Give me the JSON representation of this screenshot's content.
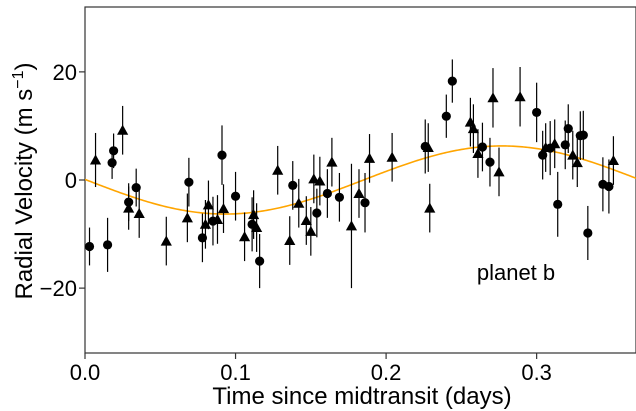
{
  "chart_data": {
    "type": "scatter",
    "title": "",
    "xlabel": "Time since midtransit (days)",
    "ylabel_main": "Radial Velocity (m s",
    "ylabel_sup": "−1",
    "ylabel_close": ")",
    "annotation": "planet b",
    "xlim": [
      0.0,
      0.366
    ],
    "ylim": [
      -32,
      32
    ],
    "x_ticks": [
      0.0,
      0.1,
      0.2,
      0.3
    ],
    "x_tick_labels": [
      "0.0",
      "0.1",
      "0.2",
      "0.3"
    ],
    "y_ticks": [
      -20,
      0,
      20
    ],
    "y_tick_labels": [
      "−20",
      "0",
      "20"
    ],
    "grid": false,
    "legend": false,
    "model_curve": {
      "color": "#FFA500",
      "function": "sinusoid",
      "amplitude": 6.3,
      "phase_of_maximum": 0.277,
      "period": 0.368
    },
    "series": [
      {
        "marker": "circle",
        "color": "#000000",
        "points": [
          {
            "x": 0.003,
            "y": -12.3,
            "err": 3.5
          },
          {
            "x": 0.015,
            "y": -12.0,
            "err": 5.0
          },
          {
            "x": 0.018,
            "y": 3.2,
            "err": 3.0
          },
          {
            "x": 0.019,
            "y": 5.4,
            "err": 3.2
          },
          {
            "x": 0.029,
            "y": -4.1,
            "err": 3.5
          },
          {
            "x": 0.034,
            "y": -1.4,
            "err": 3.5
          },
          {
            "x": 0.069,
            "y": -0.4,
            "err": 4.5
          },
          {
            "x": 0.078,
            "y": -10.7,
            "err": 4.5
          },
          {
            "x": 0.085,
            "y": -7.6,
            "err": 4.5
          },
          {
            "x": 0.091,
            "y": 4.6,
            "err": 5.5
          },
          {
            "x": 0.1,
            "y": -3.0,
            "err": 4.5
          },
          {
            "x": 0.111,
            "y": -8.2,
            "err": 5.0
          },
          {
            "x": 0.116,
            "y": -15.0,
            "err": 5.0
          },
          {
            "x": 0.138,
            "y": -1.0,
            "err": 4.5
          },
          {
            "x": 0.154,
            "y": -6.1,
            "err": 4.5
          },
          {
            "x": 0.161,
            "y": -2.5,
            "err": 4.5
          },
          {
            "x": 0.169,
            "y": -3.2,
            "err": 4.5
          },
          {
            "x": 0.186,
            "y": -4.2,
            "err": 5.5
          },
          {
            "x": 0.226,
            "y": 6.2,
            "err": 5.0
          },
          {
            "x": 0.24,
            "y": 11.8,
            "err": 4.0
          },
          {
            "x": 0.244,
            "y": 18.3,
            "err": 4.0
          },
          {
            "x": 0.264,
            "y": 6.1,
            "err": 4.5
          },
          {
            "x": 0.269,
            "y": 3.3,
            "err": 4.5
          },
          {
            "x": 0.3,
            "y": 12.5,
            "err": 5.5
          },
          {
            "x": 0.304,
            "y": 4.6,
            "err": 4.5
          },
          {
            "x": 0.309,
            "y": 5.9,
            "err": 5.0
          },
          {
            "x": 0.314,
            "y": -4.5,
            "err": 6.0
          },
          {
            "x": 0.319,
            "y": 6.5,
            "err": 4.5
          },
          {
            "x": 0.321,
            "y": 9.5,
            "err": 4.5
          },
          {
            "x": 0.329,
            "y": 8.2,
            "err": 4.5
          },
          {
            "x": 0.331,
            "y": 8.3,
            "err": 4.5
          },
          {
            "x": 0.334,
            "y": -9.8,
            "err": 5.0
          },
          {
            "x": 0.344,
            "y": -0.8,
            "err": 5.0
          },
          {
            "x": 0.348,
            "y": -1.2,
            "err": 5.0
          }
        ]
      },
      {
        "marker": "triangle",
        "color": "#000000",
        "points": [
          {
            "x": 0.007,
            "y": 3.7,
            "err": 5.0
          },
          {
            "x": 0.025,
            "y": 9.2,
            "err": 4.5
          },
          {
            "x": 0.029,
            "y": -5.2,
            "err": 4.0
          },
          {
            "x": 0.036,
            "y": -6.2,
            "err": 4.5
          },
          {
            "x": 0.054,
            "y": -11.3,
            "err": 4.5
          },
          {
            "x": 0.068,
            "y": -7.0,
            "err": 4.5
          },
          {
            "x": 0.08,
            "y": -8.2,
            "err": 4.5
          },
          {
            "x": 0.082,
            "y": -4.6,
            "err": 4.5
          },
          {
            "x": 0.088,
            "y": -7.3,
            "err": 4.5
          },
          {
            "x": 0.092,
            "y": -5.3,
            "err": 4.5
          },
          {
            "x": 0.106,
            "y": -10.5,
            "err": 4.5
          },
          {
            "x": 0.112,
            "y": -6.4,
            "err": 4.5
          },
          {
            "x": 0.114,
            "y": -8.8,
            "err": 4.5
          },
          {
            "x": 0.128,
            "y": 1.8,
            "err": 4.5
          },
          {
            "x": 0.136,
            "y": -11.2,
            "err": 4.5
          },
          {
            "x": 0.142,
            "y": -4.3,
            "err": 4.5
          },
          {
            "x": 0.147,
            "y": -7.5,
            "err": 4.5
          },
          {
            "x": 0.15,
            "y": -9.5,
            "err": 4.5
          },
          {
            "x": 0.152,
            "y": 0.2,
            "err": 4.5
          },
          {
            "x": 0.156,
            "y": -0.2,
            "err": 4.5
          },
          {
            "x": 0.164,
            "y": 3.3,
            "err": 4.5
          },
          {
            "x": 0.177,
            "y": -8.5,
            "err": 11.5
          },
          {
            "x": 0.182,
            "y": -2.5,
            "err": 4.5
          },
          {
            "x": 0.189,
            "y": 4.0,
            "err": 4.5
          },
          {
            "x": 0.204,
            "y": 4.2,
            "err": 4.5
          },
          {
            "x": 0.228,
            "y": 6.0,
            "err": 4.5
          },
          {
            "x": 0.229,
            "y": -5.2,
            "err": 4.5
          },
          {
            "x": 0.256,
            "y": 10.7,
            "err": 4.5
          },
          {
            "x": 0.258,
            "y": 9.5,
            "err": 4.5
          },
          {
            "x": 0.261,
            "y": 4.9,
            "err": 4.5
          },
          {
            "x": 0.271,
            "y": 15.2,
            "err": 5.5
          },
          {
            "x": 0.275,
            "y": 1.5,
            "err": 4.5
          },
          {
            "x": 0.289,
            "y": 15.4,
            "err": 5.5
          },
          {
            "x": 0.306,
            "y": 6.0,
            "err": 4.5
          },
          {
            "x": 0.312,
            "y": 6.7,
            "err": 4.5
          },
          {
            "x": 0.324,
            "y": 4.6,
            "err": 4.5
          },
          {
            "x": 0.327,
            "y": 3.2,
            "err": 4.5
          },
          {
            "x": 0.351,
            "y": 3.6,
            "err": 4.5
          }
        ]
      }
    ]
  }
}
